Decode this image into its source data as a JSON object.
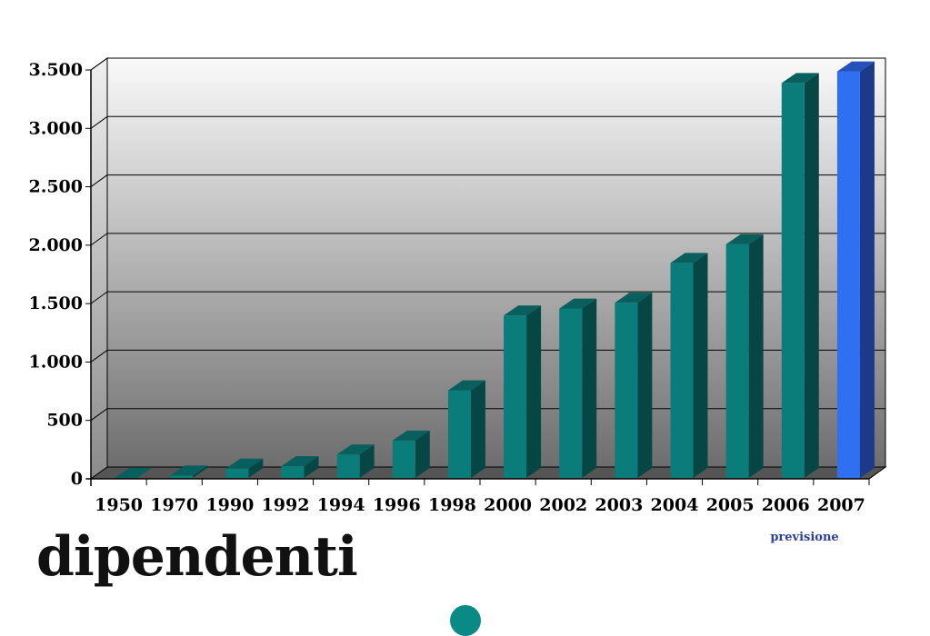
{
  "title": "dipendenti",
  "forecast_note": "previsione",
  "colors": {
    "bar": "#0a7d7a",
    "bar_top": "#085f5d",
    "bar_side": "#064745",
    "forecast_bar": "#2f6ff2",
    "forecast_top": "#2552b8",
    "forecast_side": "#1d3a8a"
  },
  "chart_data": {
    "type": "bar",
    "categories": [
      "1950",
      "1970",
      "1990",
      "1992",
      "1994",
      "1996",
      "1998",
      "2000",
      "2002",
      "2003",
      "2004",
      "2005",
      "2006",
      "2007"
    ],
    "values": [
      0,
      20,
      80,
      100,
      200,
      320,
      750,
      1390,
      1450,
      1500,
      1840,
      2000,
      3380,
      3480
    ],
    "forecast_category": "2007",
    "ylim": [
      0,
      3500
    ],
    "yticks": [
      0,
      500,
      1000,
      1500,
      2000,
      2500,
      3000,
      3500
    ],
    "ytick_labels": [
      "0",
      "500",
      "1.000",
      "1.500",
      "2.000",
      "2.500",
      "3.000",
      "3.500"
    ],
    "grid": true,
    "style": "3d"
  }
}
